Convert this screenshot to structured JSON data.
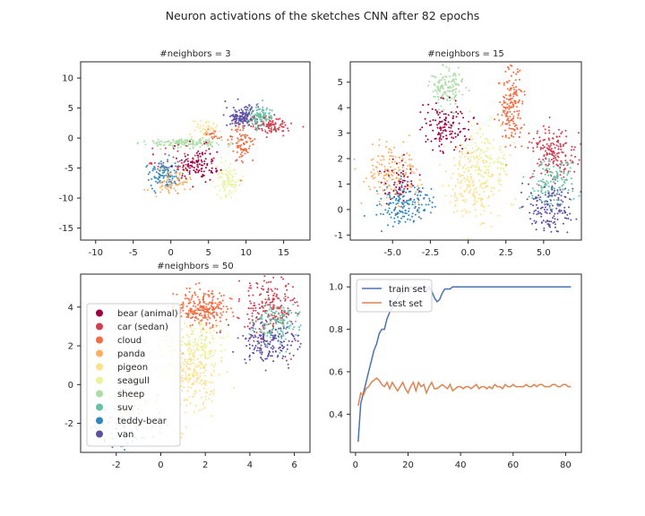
{
  "figure": {
    "title": "Neuron activations of the sketches CNN after 82 epochs"
  },
  "palette": {
    "bear (animal)": "#9e0142",
    "car (sedan)": "#d53e4f",
    "cloud": "#f46d43",
    "panda": "#fdae61",
    "pigeon": "#fee08b",
    "seagull": "#e6f598",
    "sheep": "#abdda4",
    "suv": "#66c2a5",
    "teddy-bear": "#3288bd",
    "van": "#5e4fa2"
  },
  "legend": {
    "placement": "lower-left of panel 3",
    "labels": [
      "bear (animal)",
      "car (sedan)",
      "cloud",
      "panda",
      "pigeon",
      "seagull",
      "sheep",
      "suv",
      "teddy-bear",
      "van"
    ]
  },
  "chart_data": [
    {
      "type": "scatter",
      "title": "#neighbors = 3",
      "xlim": [
        -12,
        18.5
      ],
      "ylim": [
        -17,
        12.7
      ],
      "xticks": [
        -10,
        -5,
        0,
        5,
        10,
        15
      ],
      "yticks": [
        -15,
        -10,
        -5,
        0,
        5,
        10
      ],
      "grid": false,
      "clusters": [
        {
          "label": "van",
          "cx": 9.5,
          "cy": 3.5,
          "sx": 1.1,
          "sy": 0.9,
          "n": 150
        },
        {
          "label": "suv",
          "cx": 12,
          "cy": 3.5,
          "sx": 0.8,
          "sy": 0.9,
          "n": 110
        },
        {
          "label": "car (sedan)",
          "cx": 13.5,
          "cy": 2,
          "sx": 1.3,
          "sy": 0.7,
          "n": 90
        },
        {
          "label": "cloud",
          "cx": 9.5,
          "cy": -1,
          "sx": 0.8,
          "sy": 1.5,
          "n": 90
        },
        {
          "label": "cloud",
          "cx": 5.5,
          "cy": 0.5,
          "sx": 0.6,
          "sy": 0.6,
          "n": 25
        },
        {
          "label": "sheep",
          "cx": 2,
          "cy": -0.8,
          "sx": 2.6,
          "sy": 0.4,
          "n": 150
        },
        {
          "label": "seagull",
          "cx": 7.5,
          "cy": -7,
          "sx": 0.8,
          "sy": 1.3,
          "n": 90
        },
        {
          "label": "pigeon",
          "cx": 4.5,
          "cy": 1.5,
          "sx": 0.8,
          "sy": 0.8,
          "n": 40
        },
        {
          "label": "teddy-bear",
          "cx": -0.8,
          "cy": -6,
          "sx": 1.1,
          "sy": 1.2,
          "n": 120
        },
        {
          "label": "bear (animal)",
          "cx": 3.5,
          "cy": -4.5,
          "sx": 1.5,
          "sy": 1.3,
          "n": 110
        },
        {
          "label": "panda",
          "cx": 0,
          "cy": -7.5,
          "sx": 1.2,
          "sy": 1.0,
          "n": 70
        },
        {
          "label": "car (sedan)",
          "cx": 2,
          "cy": -3.5,
          "sx": 2.5,
          "sy": 1.2,
          "n": 40
        }
      ]
    },
    {
      "type": "scatter",
      "title": "#neighbors = 15",
      "xlim": [
        -7.8,
        7.5
      ],
      "ylim": [
        -1.2,
        5.8
      ],
      "xticks": [
        -5.0,
        -2.5,
        0.0,
        2.5,
        5.0
      ],
      "yticks": [
        -1,
        0,
        1,
        2,
        3,
        4,
        5
      ],
      "grid": false,
      "clusters": [
        {
          "label": "sheep",
          "cx": -1.4,
          "cy": 4.8,
          "sx": 0.5,
          "sy": 0.45,
          "n": 140
        },
        {
          "label": "bear (animal)",
          "cx": -1.5,
          "cy": 3.3,
          "sx": 0.8,
          "sy": 0.5,
          "n": 130
        },
        {
          "label": "cloud",
          "cx": 2.9,
          "cy": 4.0,
          "sx": 0.45,
          "sy": 0.75,
          "n": 170
        },
        {
          "label": "pigeon",
          "cx": 0.5,
          "cy": 1.2,
          "sx": 0.9,
          "sy": 0.8,
          "n": 230
        },
        {
          "label": "seagull",
          "cx": 1.2,
          "cy": 2.0,
          "sx": 0.8,
          "sy": 0.6,
          "n": 90
        },
        {
          "label": "panda",
          "cx": -5.0,
          "cy": 1.4,
          "sx": 0.9,
          "sy": 0.6,
          "n": 160
        },
        {
          "label": "bear (animal)",
          "cx": -4.6,
          "cy": 1.0,
          "sx": 0.6,
          "sy": 0.4,
          "n": 60
        },
        {
          "label": "teddy-bear",
          "cx": -4.4,
          "cy": 0.2,
          "sx": 0.9,
          "sy": 0.4,
          "n": 160
        },
        {
          "label": "car (sedan)",
          "cx": 5.6,
          "cy": 2.2,
          "sx": 0.75,
          "sy": 0.55,
          "n": 180
        },
        {
          "label": "suv",
          "cx": 5.5,
          "cy": 1.0,
          "sx": 0.7,
          "sy": 0.5,
          "n": 130
        },
        {
          "label": "van",
          "cx": 5.3,
          "cy": 0.0,
          "sx": 0.8,
          "sy": 0.5,
          "n": 150
        }
      ]
    },
    {
      "type": "scatter",
      "title": "#neighbors = 50",
      "xlim": [
        -3.6,
        6.7
      ],
      "ylim": [
        -3.5,
        5.7
      ],
      "xticks": [
        -2,
        0,
        2,
        4,
        6
      ],
      "yticks": [
        -2,
        0,
        2,
        4
      ],
      "grid": false,
      "clusters": [
        {
          "label": "cloud",
          "cx": 1.9,
          "cy": 3.9,
          "sx": 0.55,
          "sy": 0.45,
          "n": 260
        },
        {
          "label": "pigeon",
          "cx": 1.4,
          "cy": 0.8,
          "sx": 0.55,
          "sy": 1.0,
          "n": 250
        },
        {
          "label": "seagull",
          "cx": 1.9,
          "cy": 2.2,
          "sx": 0.5,
          "sy": 0.6,
          "n": 100
        },
        {
          "label": "car (sedan)",
          "cx": 4.8,
          "cy": 4.0,
          "sx": 0.6,
          "sy": 0.7,
          "n": 200
        },
        {
          "label": "suv",
          "cx": 5.2,
          "cy": 3.2,
          "sx": 0.5,
          "sy": 0.6,
          "n": 140
        },
        {
          "label": "van",
          "cx": 4.9,
          "cy": 2.1,
          "sx": 0.7,
          "sy": 0.5,
          "n": 170
        },
        {
          "label": "sheep",
          "cx": 0.3,
          "cy": 2.0,
          "sx": 0.4,
          "sy": 0.5,
          "n": 40
        },
        {
          "label": "teddy-bear",
          "cx": -1.7,
          "cy": -2.3,
          "sx": 0.7,
          "sy": 0.6,
          "n": 60
        },
        {
          "label": "panda",
          "cx": -1.1,
          "cy": -0.5,
          "sx": 0.6,
          "sy": 0.9,
          "n": 50
        }
      ]
    },
    {
      "type": "line",
      "title": "",
      "xlim": [
        -2,
        86
      ],
      "ylim": [
        0.22,
        1.06
      ],
      "xticks": [
        0,
        20,
        40,
        60,
        80
      ],
      "yticks": [
        0.4,
        0.6,
        0.8,
        1.0
      ],
      "tick_labels_y": [
        "0.4",
        "0.6",
        "0.8",
        "1.0"
      ],
      "grid": false,
      "legend_placement": "upper-left",
      "x": [
        1,
        2,
        3,
        4,
        5,
        6,
        7,
        8,
        9,
        10,
        11,
        12,
        13,
        14,
        15,
        16,
        17,
        18,
        19,
        20,
        21,
        22,
        23,
        24,
        25,
        26,
        27,
        28,
        29,
        30,
        31,
        32,
        33,
        34,
        35,
        36,
        37,
        38,
        39,
        40,
        41,
        42,
        43,
        44,
        45,
        46,
        47,
        48,
        49,
        50,
        51,
        52,
        53,
        54,
        55,
        56,
        57,
        58,
        59,
        60,
        61,
        62,
        63,
        64,
        65,
        66,
        67,
        68,
        69,
        70,
        71,
        72,
        73,
        74,
        75,
        76,
        77,
        78,
        79,
        80,
        81,
        82
      ],
      "series": [
        {
          "name": "train set",
          "color": "#4c72b0",
          "values": [
            0.27,
            0.45,
            0.5,
            0.55,
            0.6,
            0.65,
            0.7,
            0.73,
            0.78,
            0.8,
            0.8,
            0.85,
            0.88,
            0.9,
            0.92,
            0.95,
            0.97,
            0.97,
            0.99,
            0.99,
            1.0,
            0.99,
            1.0,
            1.0,
            0.99,
            1.0,
            0.98,
            1.0,
            0.98,
            0.95,
            0.93,
            0.94,
            0.97,
            0.99,
            0.99,
            0.99,
            1.0,
            1.0,
            1.0,
            1.0,
            1.0,
            1.0,
            1.0,
            1.0,
            1.0,
            1.0,
            1.0,
            1.0,
            1.0,
            1.0,
            1.0,
            1.0,
            1.0,
            1.0,
            1.0,
            1.0,
            1.0,
            1.0,
            1.0,
            1.0,
            1.0,
            1.0,
            1.0,
            1.0,
            1.0,
            1.0,
            1.0,
            1.0,
            1.0,
            1.0,
            1.0,
            1.0,
            1.0,
            1.0,
            1.0,
            1.0,
            1.0,
            1.0,
            1.0,
            1.0,
            1.0,
            1.0
          ]
        },
        {
          "name": "test set",
          "color": "#dd8452",
          "values": [
            0.44,
            0.5,
            0.49,
            0.52,
            0.53,
            0.55,
            0.56,
            0.57,
            0.56,
            0.54,
            0.53,
            0.55,
            0.52,
            0.55,
            0.53,
            0.51,
            0.53,
            0.55,
            0.52,
            0.5,
            0.53,
            0.55,
            0.51,
            0.55,
            0.53,
            0.54,
            0.5,
            0.53,
            0.55,
            0.52,
            0.52,
            0.53,
            0.54,
            0.53,
            0.52,
            0.54,
            0.51,
            0.52,
            0.53,
            0.53,
            0.52,
            0.53,
            0.53,
            0.52,
            0.53,
            0.54,
            0.52,
            0.53,
            0.53,
            0.52,
            0.53,
            0.52,
            0.54,
            0.53,
            0.53,
            0.52,
            0.54,
            0.53,
            0.53,
            0.54,
            0.53,
            0.53,
            0.53,
            0.53,
            0.54,
            0.53,
            0.53,
            0.54,
            0.53,
            0.54,
            0.54,
            0.53,
            0.53,
            0.53,
            0.54,
            0.54,
            0.53,
            0.53,
            0.54,
            0.54,
            0.53,
            0.53
          ]
        }
      ]
    }
  ]
}
